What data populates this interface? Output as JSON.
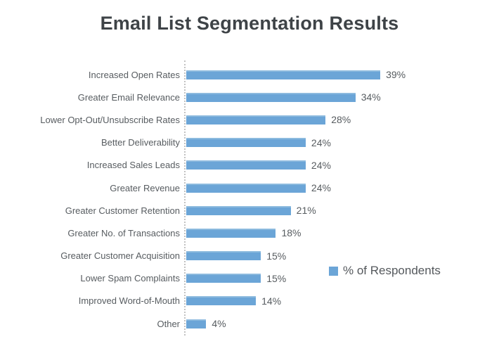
{
  "title": "Email List Segmentation Results",
  "legend": {
    "label": "% of Respondents"
  },
  "colors": {
    "bar": "#6ba5d7",
    "bar_highlight": "#8cbade",
    "title_text": "#3e4347",
    "label_text": "#575c60",
    "axis_line": "#c2c2c2",
    "background": "#ffffff"
  },
  "chart_data": {
    "type": "bar",
    "orientation": "horizontal",
    "title": "Email List Segmentation Results",
    "categories": [
      "Increased Open Rates",
      "Greater Email Relevance",
      "Lower Opt-Out/Unsubscribe Rates",
      "Better Deliverability",
      "Increased Sales Leads",
      "Greater Revenue",
      "Greater Customer Retention",
      "Greater No. of Transactions",
      "Greater Customer Acquisition",
      "Lower Spam Complaints",
      "Improved Word-of-Mouth",
      "Other"
    ],
    "values": [
      39,
      34,
      28,
      24,
      24,
      24,
      21,
      18,
      15,
      15,
      14,
      4
    ],
    "series": [
      {
        "name": "% of Respondents",
        "values": [
          39,
          34,
          28,
          24,
          24,
          24,
          21,
          18,
          15,
          15,
          14,
          4
        ]
      }
    ],
    "value_suffix": "%",
    "data_labels": true,
    "xlabel": "",
    "ylabel": "",
    "xlim": [
      0,
      45
    ],
    "grid": false,
    "legend_position": "right"
  }
}
